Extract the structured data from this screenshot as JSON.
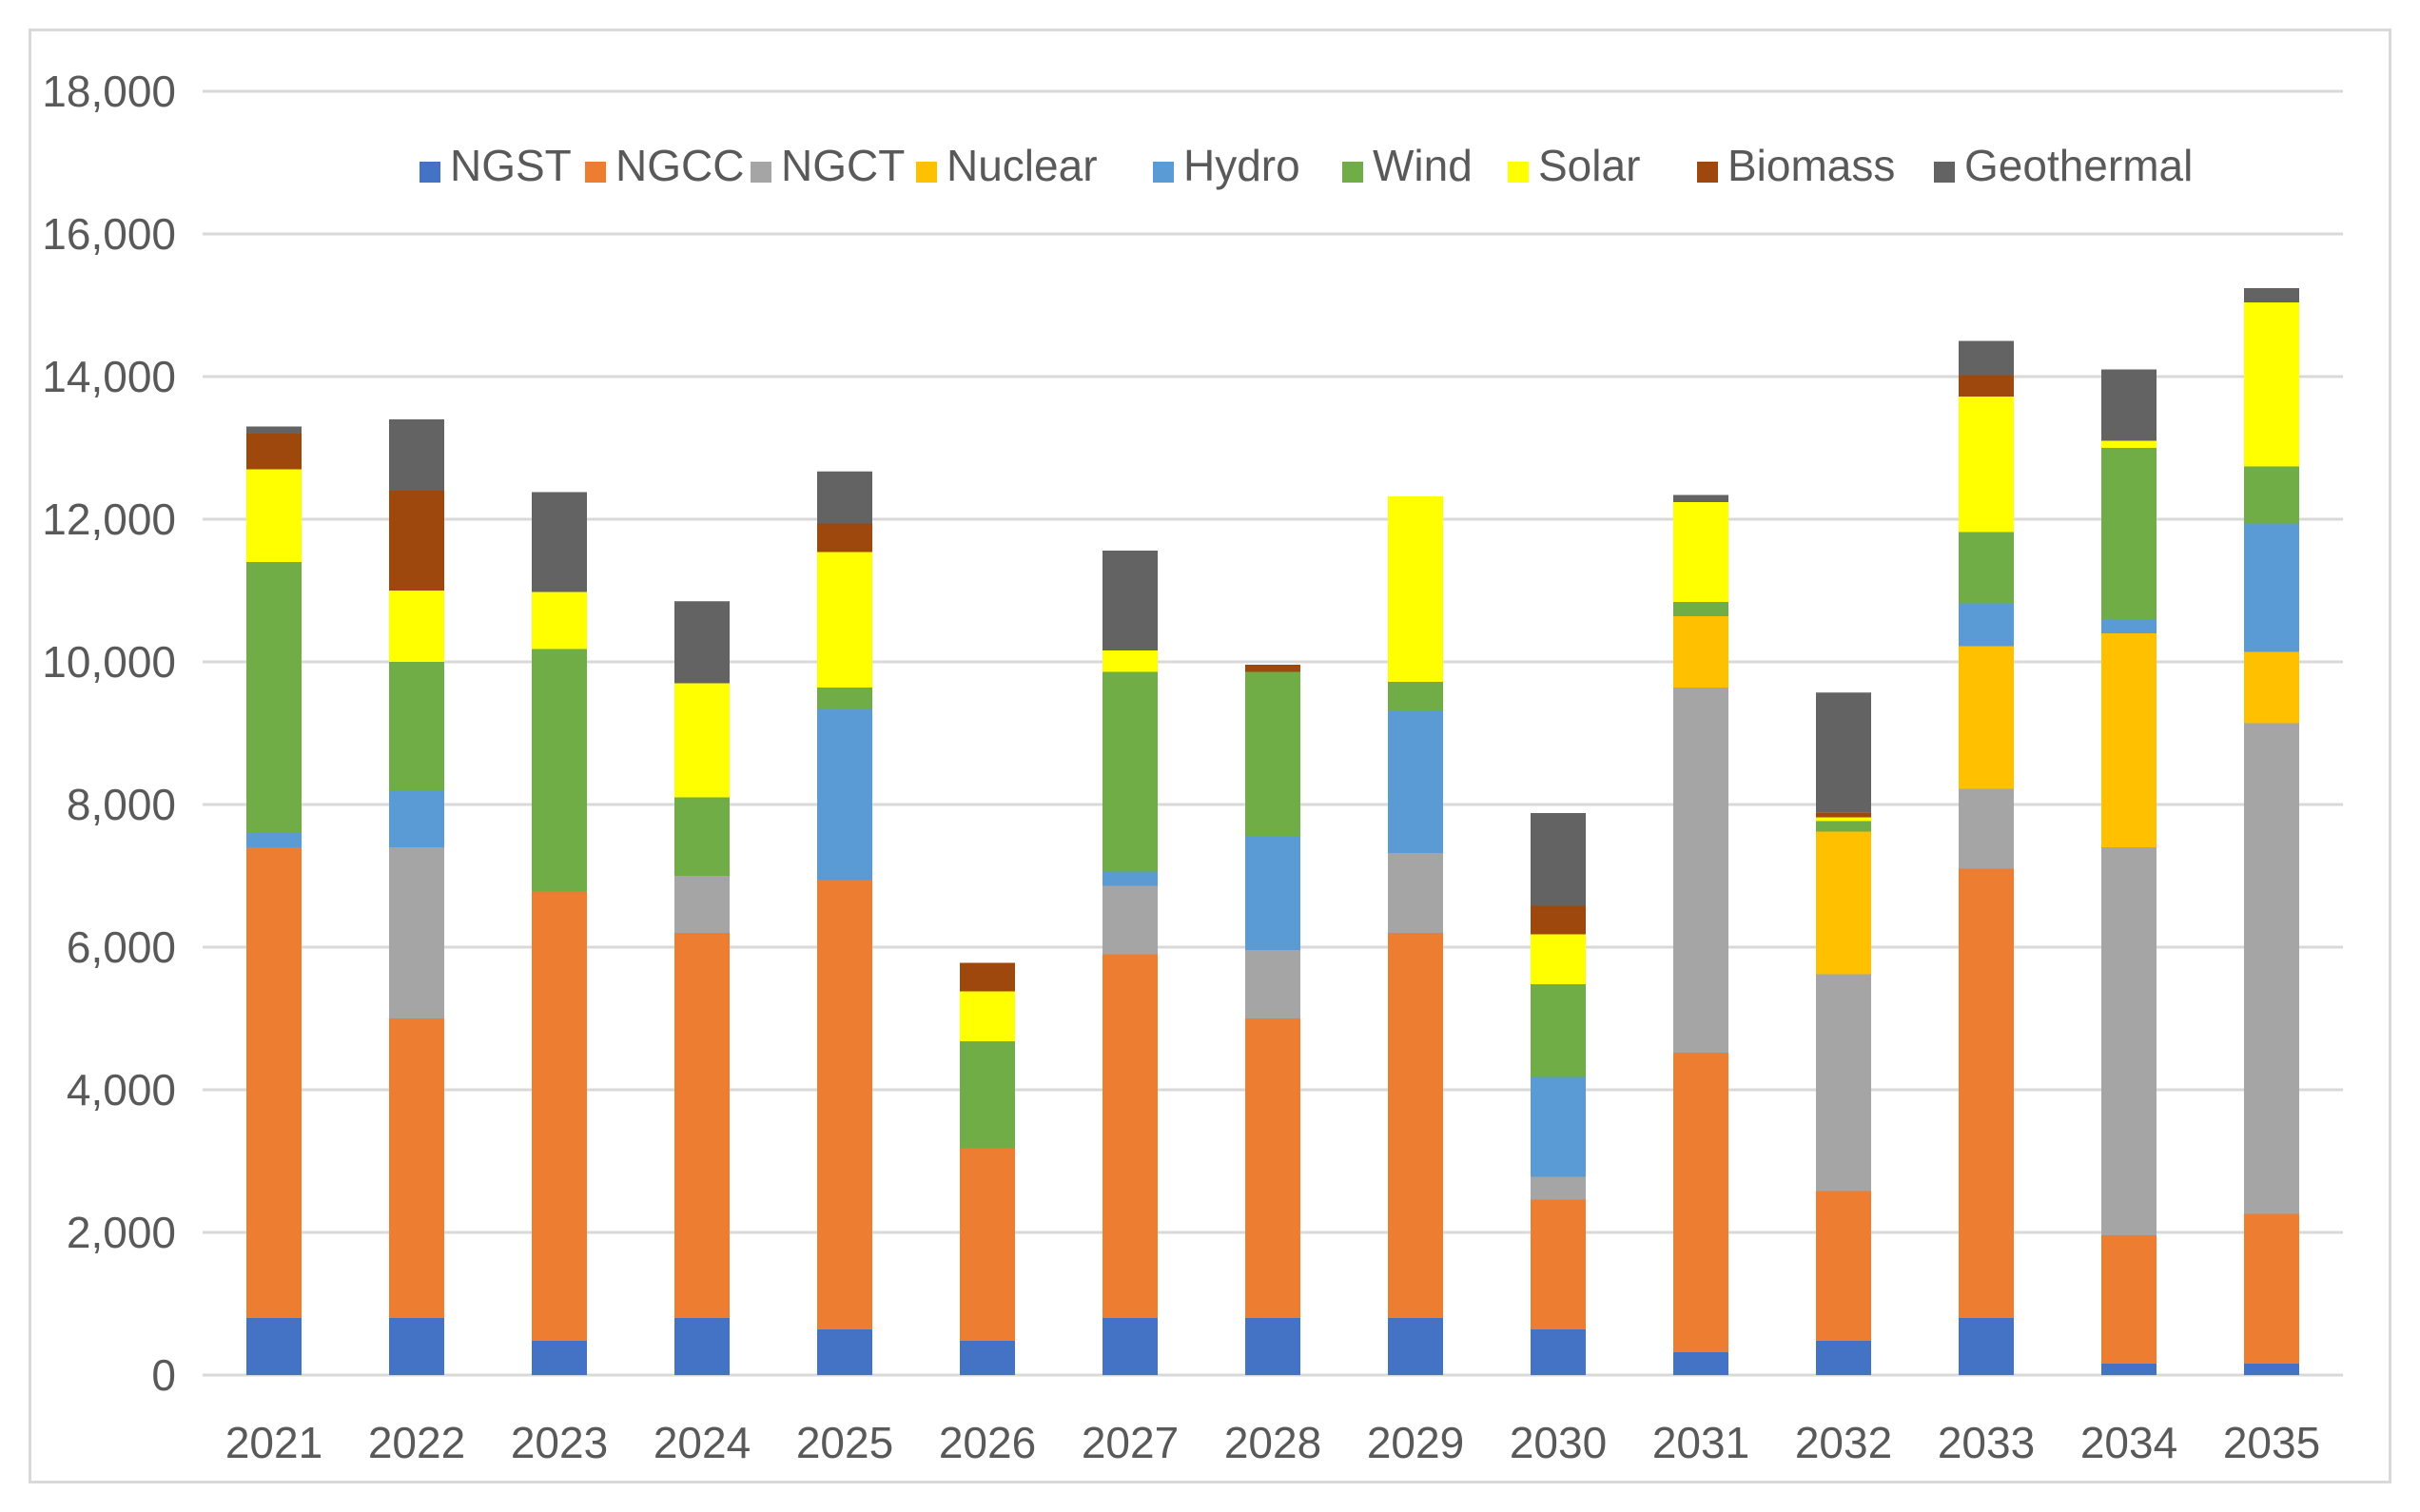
{
  "chart_data": {
    "type": "bar",
    "stacked": true,
    "title": "",
    "xlabel": "",
    "ylabel": "",
    "ylim": [
      0,
      18000
    ],
    "yticks": [
      0,
      2000,
      4000,
      6000,
      8000,
      10000,
      12000,
      14000,
      16000,
      18000
    ],
    "ytick_labels": [
      "0",
      "2,000",
      "4,000",
      "6,000",
      "8,000",
      "10,000",
      "12,000",
      "14,000",
      "16,000",
      "18,000"
    ],
    "grid": true,
    "legend_position": "top",
    "categories": [
      "2021",
      "2022",
      "2023",
      "2024",
      "2025",
      "2026",
      "2027",
      "2028",
      "2029",
      "2030",
      "2031",
      "2032",
      "2033",
      "2034",
      "2035"
    ],
    "series": [
      {
        "name": "NGST",
        "color": "#4472c4",
        "values": [
          800,
          800,
          480,
          800,
          640,
          480,
          800,
          800,
          800,
          640,
          320,
          480,
          800,
          160,
          160
        ]
      },
      {
        "name": "NGCC",
        "color": "#ed7d31",
        "values": [
          6600,
          4200,
          6300,
          5400,
          6300,
          2700,
          5100,
          4200,
          5400,
          1820,
          4200,
          2100,
          6300,
          1800,
          2100
        ]
      },
      {
        "name": "NGCT",
        "color": "#a5a5a5",
        "values": [
          0,
          2400,
          0,
          800,
          0,
          0,
          960,
          960,
          1120,
          320,
          5120,
          3040,
          1120,
          5440,
          6880
        ]
      },
      {
        "name": "Nuclear",
        "color": "#ffc000",
        "values": [
          0,
          0,
          0,
          0,
          0,
          0,
          0,
          0,
          0,
          0,
          1000,
          2000,
          2000,
          3000,
          1000
        ]
      },
      {
        "name": "Hydro",
        "color": "#5b9bd5",
        "values": [
          200,
          800,
          0,
          0,
          2400,
          0,
          200,
          1600,
          2000,
          1400,
          0,
          0,
          600,
          200,
          1800
        ]
      },
      {
        "name": "Wind",
        "color": "#70ad47",
        "values": [
          3800,
          1800,
          3400,
          1100,
          300,
          1500,
          2800,
          2300,
          400,
          1300,
          200,
          150,
          1000,
          2400,
          800
        ]
      },
      {
        "name": "Solar",
        "color": "#ffff00",
        "values": [
          1300,
          1000,
          800,
          1600,
          1900,
          700,
          300,
          0,
          2600,
          700,
          1400,
          50,
          1900,
          100,
          2300
        ]
      },
      {
        "name": "Biomass",
        "color": "#9e480e",
        "values": [
          500,
          1400,
          0,
          0,
          400,
          400,
          0,
          100,
          0,
          400,
          0,
          70,
          300,
          0,
          0
        ]
      },
      {
        "name": "Geothermal",
        "color": "#636363",
        "values": [
          100,
          1000,
          1400,
          1150,
          730,
          0,
          1400,
          0,
          0,
          1300,
          100,
          1680,
          480,
          1000,
          200
        ]
      }
    ]
  }
}
